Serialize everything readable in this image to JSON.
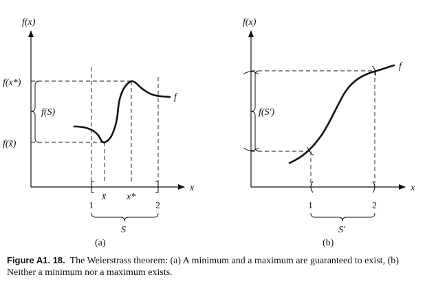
{
  "panel_a": {
    "ylabel": "f(x)",
    "xlabel": "x",
    "ytick_top": "f(x*)",
    "ytick_bottom": "f(x̃)",
    "range_label": "f(S)",
    "curve_label": "f",
    "xtick_min": "x̄",
    "xtick_max": "x*",
    "interval_start": "1",
    "interval_end": "2",
    "set_label": "S",
    "panel_label": "(a)"
  },
  "panel_b": {
    "ylabel": "f(x)",
    "xlabel": "x",
    "range_label": "f(S')",
    "curve_label": "f",
    "interval_start": "1",
    "interval_end": "2",
    "set_label": "S'",
    "panel_label": "(b)"
  },
  "caption": {
    "lead": "Figure A1. 18.",
    "text": "The Weierstrass theorem: (a) A minimum and a maximum are guaranteed to exist, (b) Neither a minimum nor a maximum exists."
  },
  "colors": {
    "ink": "#111111",
    "background": "#ffffff"
  }
}
